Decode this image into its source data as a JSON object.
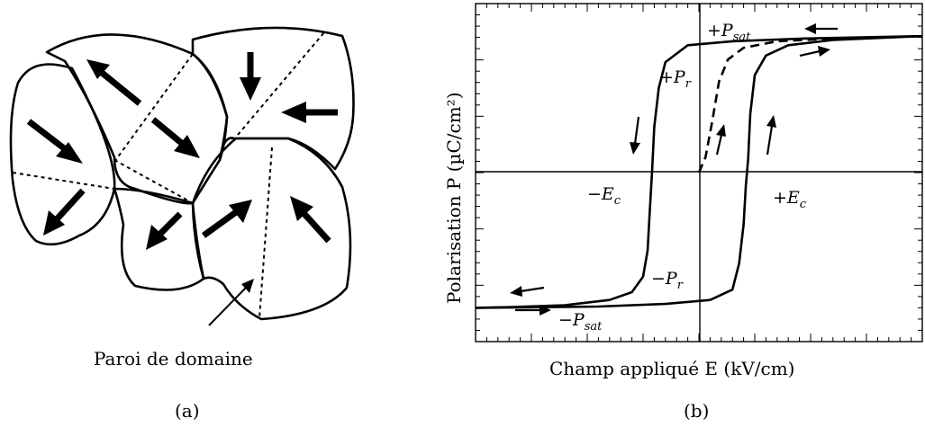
{
  "panel_a": {
    "caption": "(a)",
    "wall_label": "Paroi de domaine"
  },
  "panel_b": {
    "caption": "(b)",
    "xlabel": "Champ appliqué E (kV/cm)",
    "ylabel": "Polarisation P (µC/cm²)",
    "annotations": {
      "p_sat_pos": "+P_sat",
      "p_r_pos": "+P_r",
      "e_c_neg": "−E_c",
      "e_c_pos": "+E_c",
      "p_r_neg": "−P_r",
      "p_sat_neg": "−P_sat"
    }
  },
  "chart_data": {
    "type": "line",
    "xlim": [
      -1,
      1
    ],
    "ylim": [
      -1.3,
      1.3
    ],
    "series": [
      {
        "style": "solid",
        "points": [
          [
            -1,
            -1.04
          ],
          [
            -0.85,
            -1.035
          ],
          [
            -0.6,
            -1.02
          ],
          [
            -0.4,
            -0.98
          ],
          [
            -0.3,
            -0.92
          ],
          [
            -0.25,
            -0.8
          ],
          [
            -0.23,
            -0.6
          ],
          [
            -0.22,
            -0.3
          ],
          [
            -0.21,
            0
          ],
          [
            -0.2,
            0.35
          ],
          [
            -0.18,
            0.65
          ],
          [
            -0.15,
            0.85
          ],
          [
            -0.05,
            0.98
          ],
          [
            0.15,
            1.01
          ],
          [
            0.45,
            1.03
          ],
          [
            1,
            1.05
          ]
        ]
      },
      {
        "style": "solid",
        "points": [
          [
            -1,
            -1.04
          ],
          [
            -0.45,
            -1.03
          ],
          [
            -0.15,
            -1.01
          ],
          [
            0.05,
            -0.98
          ],
          [
            0.15,
            -0.9
          ],
          [
            0.18,
            -0.7
          ],
          [
            0.2,
            -0.4
          ],
          [
            0.21,
            -0.1
          ],
          [
            0.22,
            0.1
          ],
          [
            0.23,
            0.45
          ],
          [
            0.25,
            0.75
          ],
          [
            0.3,
            0.9
          ],
          [
            0.4,
            0.98
          ],
          [
            0.6,
            1.02
          ],
          [
            1,
            1.05
          ]
        ]
      },
      {
        "style": "dashed",
        "points": [
          [
            0,
            0
          ],
          [
            0.03,
            0.12
          ],
          [
            0.06,
            0.4
          ],
          [
            0.09,
            0.7
          ],
          [
            0.13,
            0.87
          ],
          [
            0.2,
            0.96
          ],
          [
            0.35,
            1.01
          ],
          [
            0.6,
            1.03
          ],
          [
            1,
            1.05
          ]
        ]
      }
    ]
  }
}
